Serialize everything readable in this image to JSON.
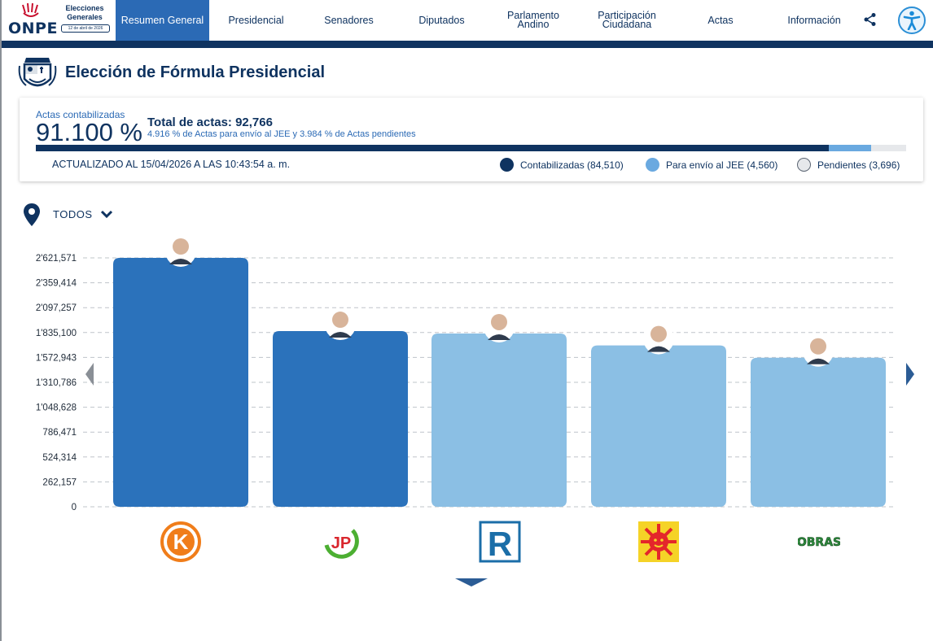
{
  "header": {
    "logo": {
      "brand": "ONPE",
      "title": "Elecciones Generales",
      "date": "12 de abril de 2026"
    },
    "nav": [
      {
        "label": "Resumen General",
        "active": true
      },
      {
        "label": "Presidencial",
        "active": false
      },
      {
        "label": "Senadores",
        "active": false
      },
      {
        "label": "Diputados",
        "active": false
      },
      {
        "label": "Parlamento Andino",
        "active": false
      },
      {
        "label": "Participación Ciudadana",
        "active": false
      },
      {
        "label": "Actas",
        "active": false
      },
      {
        "label": "Información",
        "active": false
      }
    ],
    "icons": {
      "share": "share-icon",
      "accessibility": "accessibility-icon"
    }
  },
  "page": {
    "title": "Elección de Fórmula Presidencial"
  },
  "summary": {
    "actas_label": "Actas contabilizadas",
    "actas_pct": "91.100 %",
    "total_label": "Total de actas: 92,766",
    "total_sub": "4.916 % de Actas para envío al JEE y 3.984 % de Actas pendientes",
    "updated": "ACTUALIZADO AL 15/04/2026 A LAS 10:43:54 a. m.",
    "progress": {
      "contabilizadas": 91.1,
      "jee": 4.916,
      "pendientes": 3.984
    },
    "legend": [
      {
        "label": "Contabilizadas (84,510)",
        "color": "#0f3360"
      },
      {
        "label": "Para envío al JEE (4,560)",
        "color": "#6aa9e0"
      },
      {
        "label": "Pendientes (3,696)",
        "color": "#e6e8eb"
      }
    ]
  },
  "filter": {
    "label": "TODOS"
  },
  "chart_data": {
    "type": "bar",
    "title": "",
    "xlabel": "",
    "ylabel": "",
    "ylim": [
      0,
      2621571
    ],
    "ticks": [
      "0",
      "262,157",
      "524,314",
      "786,471",
      "1'048,628",
      "1'310,786",
      "1'572,943",
      "1'835,100",
      "2'097,257",
      "2'359,414",
      "2'621,571"
    ],
    "tick_values": [
      0,
      262157,
      524314,
      786471,
      1048628,
      1310786,
      1572943,
      1835100,
      2097257,
      2359414,
      2621571
    ],
    "categories": [
      "Fuerza Popular",
      "Juntos por el Perú",
      "Renovación Popular",
      "Partido Político Perú Primero",
      "Obras"
    ],
    "values": [
      2621571,
      1850000,
      1825000,
      1700000,
      1570000
    ],
    "bar_colors": [
      "#2b72bb",
      "#2b72bb",
      "#8bbfe4",
      "#8bbfe4",
      "#8bbfe4"
    ],
    "party_logo_text": [
      "K",
      "JP",
      "R",
      "",
      "OBRAS"
    ]
  }
}
